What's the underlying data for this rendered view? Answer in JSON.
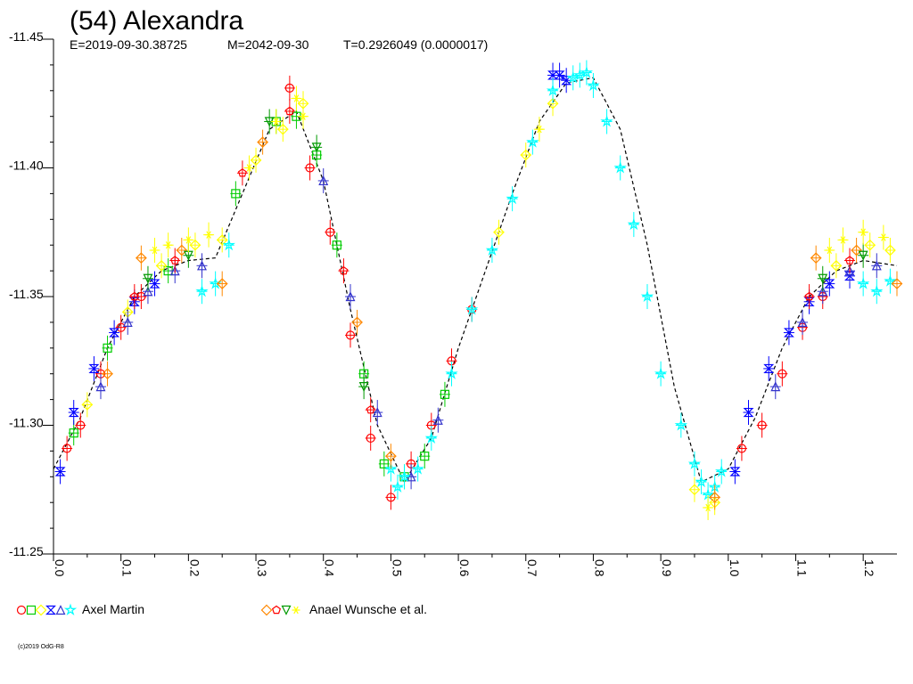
{
  "chart_data": {
    "type": "scatter",
    "title": "(54) Alexandra",
    "subtitle": {
      "epoch": "E=2019-09-30.38725",
      "model": "M=2042-09-30",
      "period": "T=0.2926049 (0.0000017)"
    },
    "xlabel": "",
    "ylabel": "",
    "xlim": [
      0.0,
      1.25
    ],
    "ylim": [
      -11.25,
      -11.45
    ],
    "y_inverted": true,
    "grid": false,
    "x_ticks": [
      "0.0",
      "0.1",
      "0.2",
      "0.3",
      "0.4",
      "0.5",
      "0.6",
      "0.7",
      "0.8",
      "0.9",
      "1.0",
      "1.1",
      "1.2"
    ],
    "y_ticks": [
      "-11.45",
      "-11.40",
      "-11.35",
      "-11.30",
      "-11.25"
    ],
    "model_curve": {
      "name": "",
      "x": [
        0.0,
        0.04,
        0.08,
        0.12,
        0.16,
        0.2,
        0.24,
        0.28,
        0.32,
        0.36,
        0.4,
        0.44,
        0.48,
        0.52,
        0.56,
        0.6,
        0.64,
        0.68,
        0.72,
        0.76,
        0.8,
        0.84,
        0.88,
        0.92,
        0.96,
        1.0,
        1.04,
        1.08,
        1.12,
        1.16,
        1.2,
        1.25
      ],
      "y": [
        -11.283,
        -11.303,
        -11.33,
        -11.35,
        -11.36,
        -11.364,
        -11.365,
        -11.39,
        -11.415,
        -11.422,
        -11.395,
        -11.345,
        -11.3,
        -11.278,
        -11.295,
        -11.33,
        -11.36,
        -11.39,
        -11.418,
        -11.433,
        -11.435,
        -11.415,
        -11.37,
        -11.315,
        -11.278,
        -11.283,
        -11.303,
        -11.33,
        -11.35,
        -11.36,
        -11.364,
        -11.362
      ]
    },
    "series": [
      {
        "observer": "Axel Martin",
        "symbol": "circle",
        "color": "#ff0000",
        "x": [
          0.02,
          0.04,
          0.07,
          0.1,
          0.13,
          0.35,
          0.38,
          0.41,
          0.44,
          0.47,
          0.5,
          0.53,
          0.56,
          0.59,
          0.62,
          1.02,
          1.05,
          1.08,
          1.11,
          1.14
        ],
        "y": [
          -11.291,
          -11.3,
          -11.32,
          -11.338,
          -11.35,
          -11.431,
          -11.4,
          -11.375,
          -11.335,
          -11.295,
          -11.272,
          -11.285,
          -11.3,
          -11.325,
          -11.345,
          -11.291,
          -11.3,
          -11.32,
          -11.338,
          -11.35
        ]
      },
      {
        "observer": "Axel Martin",
        "symbol": "square",
        "color": "#00cc00",
        "x": [
          0.03,
          0.08,
          0.17,
          0.27,
          0.33,
          0.36,
          0.39,
          0.42,
          0.46,
          0.49,
          0.52,
          0.55,
          0.58
        ],
        "y": [
          -11.297,
          -11.33,
          -11.36,
          -11.39,
          -11.418,
          -11.42,
          -11.405,
          -11.37,
          -11.32,
          -11.285,
          -11.28,
          -11.288,
          -11.312
        ]
      },
      {
        "observer": "Axel Martin",
        "symbol": "diamond",
        "color": "#ffff00",
        "x": [
          0.05,
          0.11,
          0.16,
          0.21,
          0.25,
          0.3,
          0.34,
          0.37,
          0.66,
          0.7,
          0.74,
          0.95,
          0.98,
          1.16,
          1.21,
          1.24
        ],
        "y": [
          -11.308,
          -11.344,
          -11.362,
          -11.37,
          -11.372,
          -11.403,
          -11.415,
          -11.425,
          -11.375,
          -11.405,
          -11.425,
          -11.275,
          -11.27,
          -11.362,
          -11.37,
          -11.368
        ]
      },
      {
        "observer": "Axel Martin",
        "symbol": "hourglass",
        "color": "#0000ff",
        "x": [
          0.01,
          0.03,
          0.06,
          0.09,
          0.12,
          0.15,
          0.74,
          0.75,
          0.76,
          1.01,
          1.03,
          1.06,
          1.09,
          1.12,
          1.15,
          1.18
        ],
        "y": [
          -11.282,
          -11.305,
          -11.322,
          -11.336,
          -11.348,
          -11.355,
          -11.436,
          -11.436,
          -11.434,
          -11.282,
          -11.305,
          -11.322,
          -11.336,
          -11.348,
          -11.355,
          -11.358
        ]
      },
      {
        "observer": "Axel Martin",
        "symbol": "triangle-up",
        "color": "#3333cc",
        "x": [
          0.07,
          0.11,
          0.14,
          0.18,
          0.22,
          0.4,
          0.44,
          0.48,
          0.53,
          0.57,
          1.07,
          1.11,
          1.14,
          1.18,
          1.22
        ],
        "y": [
          -11.315,
          -11.34,
          -11.352,
          -11.36,
          -11.362,
          -11.395,
          -11.35,
          -11.305,
          -11.28,
          -11.302,
          -11.315,
          -11.34,
          -11.352,
          -11.36,
          -11.362
        ]
      },
      {
        "observer": "Axel Martin",
        "symbol": "star",
        "color": "#00ffff",
        "x": [
          0.22,
          0.24,
          0.26,
          0.5,
          0.51,
          0.52,
          0.54,
          0.56,
          0.59,
          0.62,
          0.65,
          0.68,
          0.71,
          0.74,
          0.77,
          0.78,
          0.79,
          0.8,
          0.82,
          0.84,
          0.86,
          0.88,
          0.9,
          0.93,
          0.95,
          0.96,
          0.97,
          0.98,
          0.99,
          1.2,
          1.22,
          1.24
        ],
        "y": [
          -11.352,
          -11.355,
          -11.37,
          -11.283,
          -11.276,
          -11.28,
          -11.283,
          -11.295,
          -11.32,
          -11.345,
          -11.368,
          -11.388,
          -11.41,
          -11.43,
          -11.435,
          -11.436,
          -11.437,
          -11.432,
          -11.418,
          -11.4,
          -11.378,
          -11.35,
          -11.32,
          -11.3,
          -11.285,
          -11.278,
          -11.273,
          -11.276,
          -11.282,
          -11.355,
          -11.352,
          -11.356
        ]
      },
      {
        "observer": "Anael Wunsche et al.",
        "symbol": "diamond",
        "color": "#ff8800",
        "x": [
          0.08,
          0.13,
          0.19,
          0.25,
          0.31,
          0.45,
          0.5,
          0.98,
          1.13,
          1.19,
          1.25
        ],
        "y": [
          -11.32,
          -11.365,
          -11.368,
          -11.355,
          -11.41,
          -11.34,
          -11.288,
          -11.272,
          -11.365,
          -11.368,
          -11.355
        ]
      },
      {
        "observer": "Anael Wunsche et al.",
        "symbol": "pentagon",
        "color": "#ff0000",
        "x": [
          0.12,
          0.18,
          0.28,
          0.35,
          0.43,
          0.47,
          1.12,
          1.18
        ],
        "y": [
          -11.35,
          -11.364,
          -11.398,
          -11.422,
          -11.36,
          -11.306,
          -11.35,
          -11.364
        ]
      },
      {
        "observer": "Anael Wunsche et al.",
        "symbol": "triangle-down",
        "color": "#009900",
        "x": [
          0.14,
          0.2,
          0.32,
          0.39,
          0.46,
          1.14,
          1.2
        ],
        "y": [
          -11.357,
          -11.366,
          -11.418,
          -11.408,
          -11.315,
          -11.357,
          -11.366
        ]
      },
      {
        "observer": "Anael Wunsche et al.",
        "symbol": "asterisk",
        "color": "#ffff00",
        "x": [
          0.15,
          0.17,
          0.2,
          0.23,
          0.29,
          0.33,
          0.36,
          0.37,
          0.72,
          0.97,
          1.15,
          1.17,
          1.2,
          1.23
        ],
        "y": [
          -11.368,
          -11.37,
          -11.372,
          -11.374,
          -11.4,
          -11.418,
          -11.427,
          -11.42,
          -11.415,
          -11.268,
          -11.368,
          -11.372,
          -11.375,
          -11.373
        ]
      }
    ],
    "legend": {
      "placement": "bottom",
      "groups": [
        {
          "label": "Axel Martin",
          "symbols": [
            "circle",
            "square",
            "diamond",
            "hourglass",
            "triangle-up",
            "star"
          ],
          "colors": [
            "#ff0000",
            "#00cc00",
            "#ffff00",
            "#0000ff",
            "#3333cc",
            "#00ffff"
          ]
        },
        {
          "label": "Anael Wunsche et al.",
          "symbols": [
            "diamond",
            "pentagon",
            "triangle-down",
            "asterisk"
          ],
          "colors": [
            "#ff8800",
            "#ff0000",
            "#009900",
            "#ffff00"
          ]
        }
      ]
    },
    "copyright": "(c)2019 OdG-R8"
  }
}
